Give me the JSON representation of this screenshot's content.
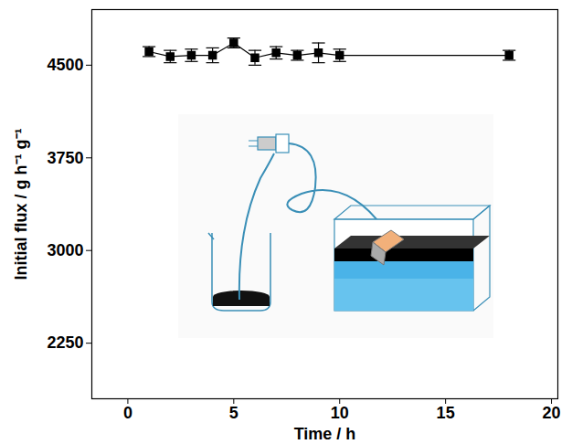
{
  "chart_data": {
    "type": "line",
    "x_label": "Time / h",
    "y_label": "Initial flux / g h⁻¹ g⁻¹",
    "x": [
      1,
      2,
      3,
      4,
      5,
      6,
      7,
      8,
      9,
      10,
      18
    ],
    "values": [
      4610,
      4570,
      4580,
      4580,
      4680,
      4560,
      4600,
      4580,
      4600,
      4580,
      4580
    ],
    "errors": [
      40,
      50,
      50,
      60,
      40,
      60,
      50,
      40,
      80,
      50,
      40
    ],
    "color": "#000000",
    "marker": "square",
    "line_style": "solid",
    "xlim": [
      -1.7,
      20.3
    ],
    "ylim": [
      1800,
      4950
    ],
    "xticks": [
      0,
      5,
      10,
      15,
      20
    ],
    "yticks": [
      2250,
      3000,
      3750,
      4500
    ],
    "grid": false
  }
}
